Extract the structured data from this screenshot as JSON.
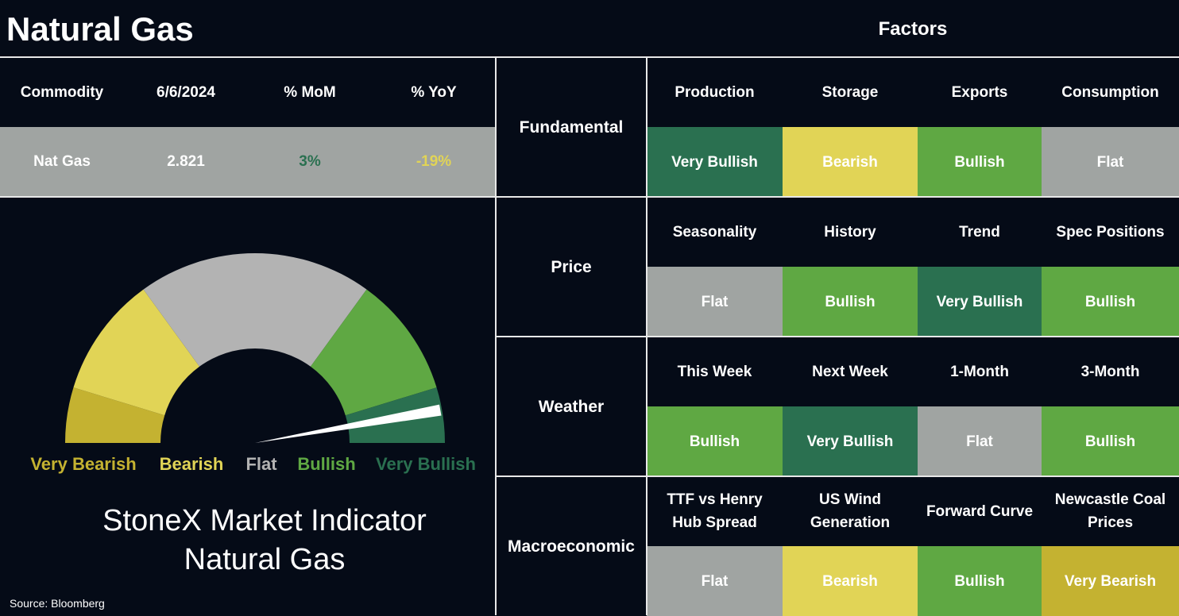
{
  "header": {
    "title": "Natural Gas",
    "factors_title": "Factors"
  },
  "summary": {
    "columns": [
      "Commodity",
      "6/6/2024",
      "% MoM",
      "% YoY"
    ],
    "row": [
      "Nat Gas",
      "2.821",
      "3%",
      "-19%"
    ],
    "row_colors": [
      "#ffffff",
      "#ffffff",
      "#2a7050",
      "#e1d456"
    ]
  },
  "gauge": {
    "labels": [
      {
        "label": "Very Bearish",
        "color": "#c4b231"
      },
      {
        "label": "Bearish",
        "color": "#e1d456"
      },
      {
        "label": "Flat",
        "color": "#b3b3b3"
      },
      {
        "label": "Bullish",
        "color": "#5fa843"
      },
      {
        "label": "Very Bullish",
        "color": "#2a7050"
      }
    ],
    "needle": 0.944,
    "title_lines": [
      "StoneX Market Indicator",
      "Natural Gas"
    ]
  },
  "source": "Source: Bloomberg",
  "factors": [
    {
      "name": "Fundamental",
      "items": [
        {
          "label": "Production",
          "signal": "Very Bullish",
          "color": "#2a7050"
        },
        {
          "label": "Storage",
          "signal": "Bearish",
          "color": "#e1d456"
        },
        {
          "label": "Exports",
          "signal": "Bullish",
          "color": "#5fa843"
        },
        {
          "label": "Consumption",
          "signal": "Flat",
          "color": "#a0a4a2"
        }
      ]
    },
    {
      "name": "Price",
      "items": [
        {
          "label": "Seasonality",
          "signal": "Flat",
          "color": "#a0a4a2"
        },
        {
          "label": "History",
          "signal": "Bullish",
          "color": "#5fa843"
        },
        {
          "label": "Trend",
          "signal": "Very Bullish",
          "color": "#2a7050"
        },
        {
          "label": "Spec Positions",
          "signal": "Bullish",
          "color": "#5fa843"
        }
      ]
    },
    {
      "name": "Weather",
      "items": [
        {
          "label": "This Week",
          "signal": "Bullish",
          "color": "#5fa843"
        },
        {
          "label": "Next Week",
          "signal": "Very Bullish",
          "color": "#2a7050"
        },
        {
          "label": "1-Month",
          "signal": "Flat",
          "color": "#a0a4a2"
        },
        {
          "label": "3-Month",
          "signal": "Bullish",
          "color": "#5fa843"
        }
      ]
    },
    {
      "name": "Macroeconomic",
      "items": [
        {
          "label": "TTF vs Henry Hub Spread",
          "signal": "Flat",
          "color": "#a0a4a2"
        },
        {
          "label": "US Wind Generation",
          "signal": "Bearish",
          "color": "#e1d456"
        },
        {
          "label": "Forward Curve",
          "signal": "Bullish",
          "color": "#5fa843"
        },
        {
          "label": "Newcastle Coal Prices",
          "signal": "Very Bearish",
          "color": "#c4b231"
        }
      ]
    }
  ]
}
